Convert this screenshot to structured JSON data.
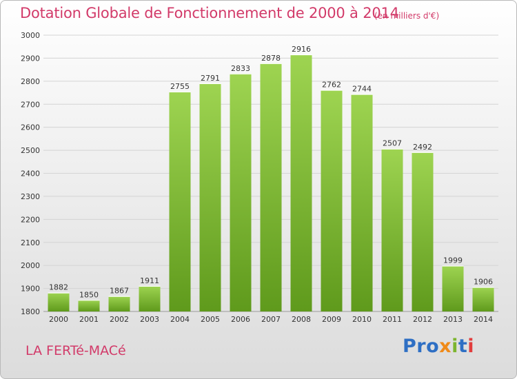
{
  "header": {
    "title": "Dotation Globale de Fonctionnement de 2000 à 2014",
    "unit": "(en milliers d'€)"
  },
  "footer": {
    "commune": "LA FERTé-MACé",
    "logo": "Proxiti"
  },
  "colors": {
    "accent": "#d23a69",
    "bar_top": "#9ed451",
    "bar_bottom": "#5f9a1c",
    "grid": "#d4d4d4",
    "axis_text": "#333333"
  },
  "chart_data": {
    "type": "bar",
    "categories": [
      "2000",
      "2001",
      "2002",
      "2003",
      "2004",
      "2005",
      "2006",
      "2007",
      "2008",
      "2009",
      "2010",
      "2011",
      "2012",
      "2013",
      "2014"
    ],
    "values": [
      1882,
      1850,
      1867,
      1911,
      2755,
      2791,
      2833,
      2878,
      2916,
      2762,
      2744,
      2507,
      2492,
      1999,
      1906
    ],
    "title": "Dotation Globale de Fonctionnement de 2000 à 2014",
    "xlabel": "",
    "ylabel": "",
    "ylim": [
      1800,
      3000
    ],
    "yticks": [
      1800,
      1900,
      2000,
      2100,
      2200,
      2300,
      2400,
      2500,
      2600,
      2700,
      2800,
      2900,
      3000
    ],
    "grid": true,
    "legend": "none",
    "data_labels": true
  }
}
